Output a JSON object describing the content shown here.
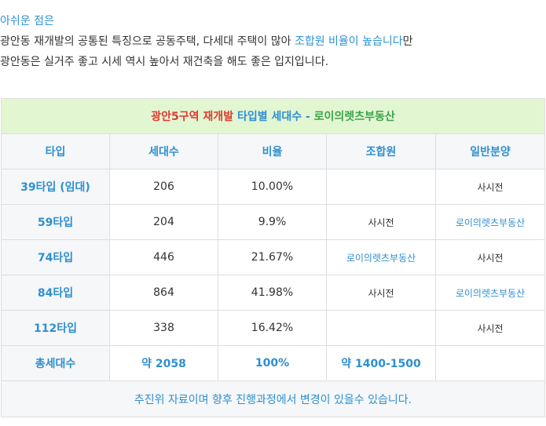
{
  "intro": {
    "line1": "아쉬운 점은",
    "line2_a": "광안동 재개발의 공통된 특징으로 공동주택, 다세대 주택이 많아 ",
    "line2_b": "조합원 비율이 높습니다",
    "line2_c": "만",
    "line3": "광안동은 실거주 좋고 시세 역시 높아서 재건축을 해도 좋은 입지입니다."
  },
  "table": {
    "title_a": "광안5구역 재개발",
    "title_b": " 타입별 세대수 - ",
    "title_c": "로이의렛츠부동산",
    "headers": [
      "타입",
      "세대수",
      "비율",
      "조합원",
      "일반분양"
    ],
    "rows": [
      {
        "type": "39타입 (임대)",
        "units": "206",
        "ratio": "10.00%",
        "members": "",
        "general": "사시전",
        "members_link": false,
        "general_link": false
      },
      {
        "type": "59타입",
        "units": "204",
        "ratio": "9.9%",
        "members": "사시전",
        "general": "로이의렛츠부동산",
        "members_link": false,
        "general_link": true
      },
      {
        "type": "74타입",
        "units": "446",
        "ratio": "21.67%",
        "members": "로이의렛츠부동산",
        "general": "사시전",
        "members_link": true,
        "general_link": false
      },
      {
        "type": "84타입",
        "units": "864",
        "ratio": "41.98%",
        "members": "사시전",
        "general": "로이의렛츠부동산",
        "members_link": false,
        "general_link": true
      },
      {
        "type": "112타입",
        "units": "338",
        "ratio": "16.42%",
        "members": "",
        "general": "사시전",
        "members_link": false,
        "general_link": false
      }
    ],
    "total": {
      "label": "총세대수",
      "units": "약 2058",
      "ratio": "100%",
      "members": "약 1400-1500",
      "general": ""
    },
    "note": "추진위 자료이며 향후 진행과정에서 변경이 있을수 있습니다."
  },
  "colors": {
    "accent_blue": "#2f8fd1",
    "title_red": "#e03a2f",
    "title_green": "#3ba54a",
    "title_bg": "#e3f6d2"
  }
}
